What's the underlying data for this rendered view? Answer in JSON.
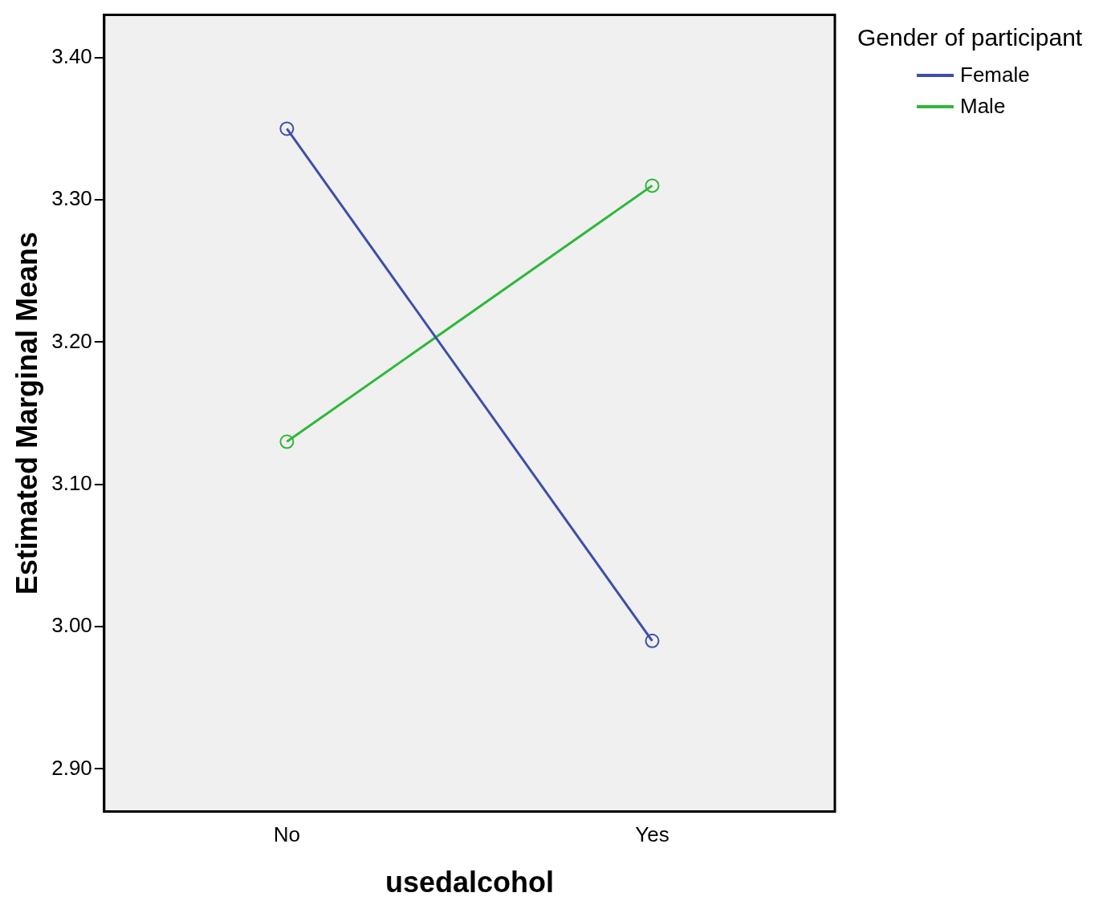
{
  "chart_data": {
    "type": "line",
    "xlabel": "usedalcohol",
    "ylabel": "Estimated Marginal Means",
    "legend_title": "Gender of participant",
    "categories": [
      "No",
      "Yes"
    ],
    "series": [
      {
        "name": "Female",
        "color": "#3d4fa8",
        "values": [
          3.35,
          2.99
        ]
      },
      {
        "name": "Male",
        "color": "#2eb83a",
        "values": [
          3.13,
          3.31
        ]
      }
    ],
    "ylim": [
      2.87,
      3.43
    ],
    "yticks": [
      {
        "value": 2.9,
        "label": "2.90"
      },
      {
        "value": 3.0,
        "label": "3.00"
      },
      {
        "value": 3.1,
        "label": "3.10"
      },
      {
        "value": 3.2,
        "label": "3.20"
      },
      {
        "value": 3.3,
        "label": "3.30"
      },
      {
        "value": 3.4,
        "label": "3.40"
      }
    ],
    "grid": false,
    "legend": "top right",
    "marker": "circle",
    "line_style": "solid"
  }
}
